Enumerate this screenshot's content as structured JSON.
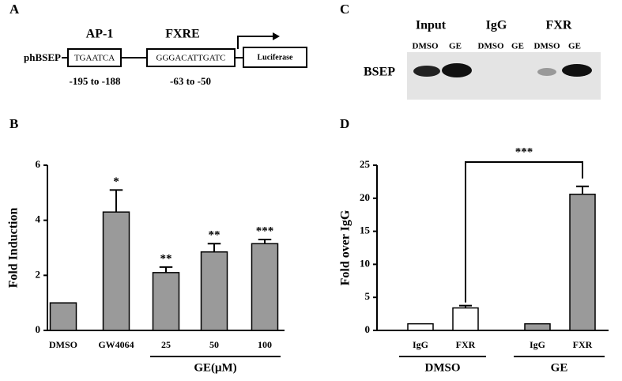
{
  "panel_a": {
    "label": "A",
    "promoter": "phBSEP",
    "elements": [
      {
        "name": "AP-1",
        "sequence": "TGAATCA",
        "position": "-195 to -188"
      },
      {
        "name": "FXRE",
        "sequence": "GGGACATTGATC",
        "position": "-63 to -50"
      }
    ],
    "reporter": "Luciferase"
  },
  "panel_c": {
    "label": "C",
    "row_label": "BSEP",
    "groups": [
      {
        "name": "Input",
        "lanes": [
          "DMSO",
          "GE"
        ]
      },
      {
        "name": "IgG",
        "lanes": [
          "DMSO",
          "GE"
        ]
      },
      {
        "name": "FXR",
        "lanes": [
          "DMSO",
          "GE"
        ]
      }
    ]
  },
  "chart_data": [
    {
      "type": "bar",
      "panel": "B",
      "ylabel": "Fold Induction",
      "categories": [
        "DMSO",
        "GW4064",
        "25",
        "50",
        "100"
      ],
      "values": [
        1,
        4.3,
        2.1,
        2.85,
        3.15
      ],
      "errors": [
        0,
        0.8,
        0.2,
        0.3,
        0.15
      ],
      "significance": [
        null,
        "*",
        "**",
        "**",
        "***"
      ],
      "groups": [
        {
          "label": "GE(μM)"
        }
      ],
      "color": "#9a9a9a",
      "ylim": [
        0,
        6
      ],
      "yticks": [
        0,
        2,
        4,
        6
      ]
    },
    {
      "type": "bar",
      "panel": "D",
      "ylabel": "Fold over IgG",
      "categories": [
        "IgG",
        "FXR",
        "IgG",
        "FXR"
      ],
      "values": [
        1,
        3.4,
        1,
        20.6
      ],
      "errors": [
        0,
        0.35,
        0,
        1.2
      ],
      "colors": [
        "#ffffff",
        "#ffffff",
        "#9a9a9a",
        "#9a9a9a"
      ],
      "groups": [
        {
          "label": "DMSO"
        },
        {
          "label": "GE"
        }
      ],
      "comparisons": [
        {
          "label": "***"
        }
      ],
      "ylim": [
        0,
        25
      ],
      "yticks": [
        0,
        5,
        10,
        15,
        20,
        25
      ]
    }
  ]
}
